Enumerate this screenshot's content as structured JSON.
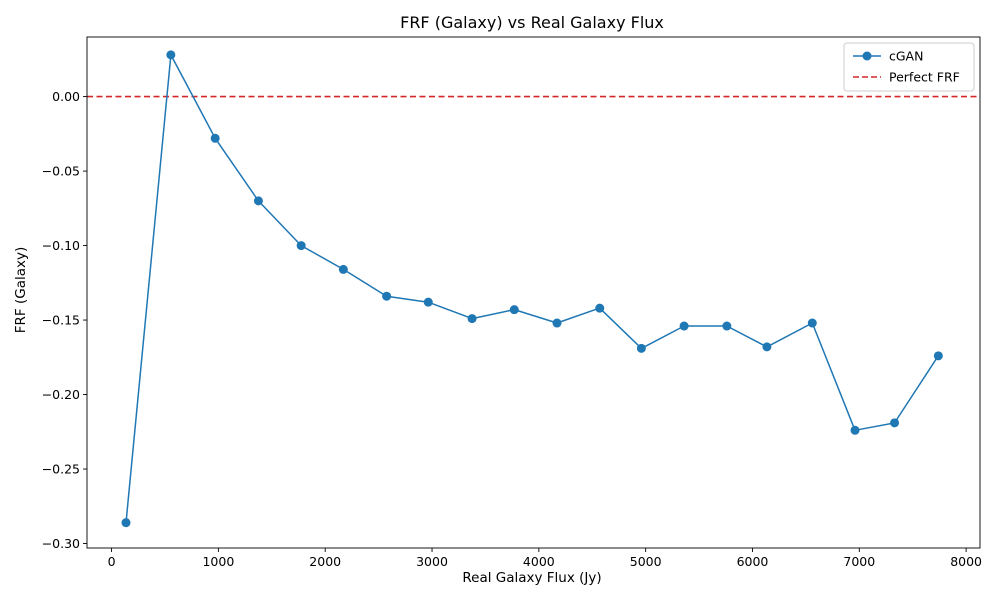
{
  "chart_data": {
    "type": "line",
    "title": "FRF (Galaxy) vs Real Galaxy Flux",
    "xlabel": "Real Galaxy Flux (Jy)",
    "ylabel": "FRF (Galaxy)",
    "xlim": [
      -230,
      8130
    ],
    "ylim": [
      -0.303,
      0.04
    ],
    "xticks": [
      0,
      1000,
      2000,
      3000,
      4000,
      5000,
      6000,
      7000,
      8000
    ],
    "xtick_labels": [
      "0",
      "1000",
      "2000",
      "3000",
      "4000",
      "5000",
      "6000",
      "7000",
      "8000"
    ],
    "yticks": [
      0.0,
      -0.05,
      -0.1,
      -0.15,
      -0.2,
      -0.25,
      -0.3
    ],
    "ytick_labels": [
      "0.00",
      "−0.05",
      "−0.10",
      "−0.15",
      "−0.20",
      "−0.25",
      "−0.30"
    ],
    "grid": false,
    "legend_position": "top-right",
    "series": [
      {
        "name": "cGAN",
        "color": "#1f77b4",
        "marker": "circle",
        "x": [
          135,
          555,
          970,
          1375,
          1775,
          2170,
          2575,
          2965,
          3375,
          3770,
          4170,
          4570,
          4960,
          5360,
          5760,
          6135,
          6560,
          6960,
          7330,
          7740
        ],
        "y": [
          -0.286,
          0.028,
          -0.028,
          -0.07,
          -0.1,
          -0.116,
          -0.134,
          -0.138,
          -0.149,
          -0.143,
          -0.152,
          -0.142,
          -0.169,
          -0.154,
          -0.154,
          -0.168,
          -0.152,
          -0.224,
          -0.219,
          -0.174
        ]
      }
    ],
    "reference_lines": [
      {
        "name": "Perfect FRF",
        "y": 0.0,
        "color": "#d62728",
        "style": "dashed"
      }
    ]
  }
}
